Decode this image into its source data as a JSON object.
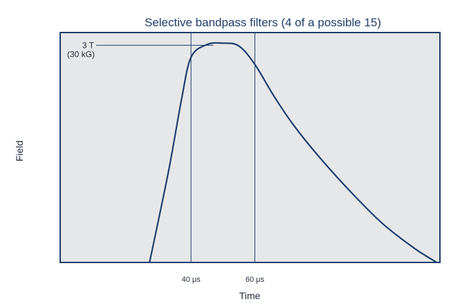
{
  "chart_data": {
    "type": "line",
    "title": "Selective bandpass filters (4 of a possible 15)",
    "xlabel": "Time",
    "ylabel": "Field",
    "grid": false,
    "x_ticks": [
      {
        "value": 40,
        "label": "40 μs"
      },
      {
        "value": 60,
        "label": "60 μs"
      }
    ],
    "xlim": [
      -1,
      118
    ],
    "ylim": [
      0,
      3.25
    ],
    "series": [
      {
        "x": [
          27,
          33,
          37,
          40,
          45,
          50,
          55,
          60,
          66,
          72,
          80,
          90,
          100,
          110,
          117
        ],
        "y": [
          0,
          1.3,
          2.3,
          2.9,
          3.08,
          3.1,
          3.06,
          2.8,
          2.35,
          1.95,
          1.5,
          1.0,
          0.55,
          0.2,
          0
        ]
      }
    ],
    "annotations": [
      {
        "text_line1": "3 T",
        "text_line2": "(30 kG)",
        "x": 47,
        "y": 3.07
      }
    ],
    "colors": {
      "line": "#1f3d6b",
      "plot_background": "#e6e7e8",
      "frame": "#1f3d6b",
      "title": "#1f3d6b",
      "text": "#1f2a3a",
      "leader": "#1f3d6b"
    }
  }
}
